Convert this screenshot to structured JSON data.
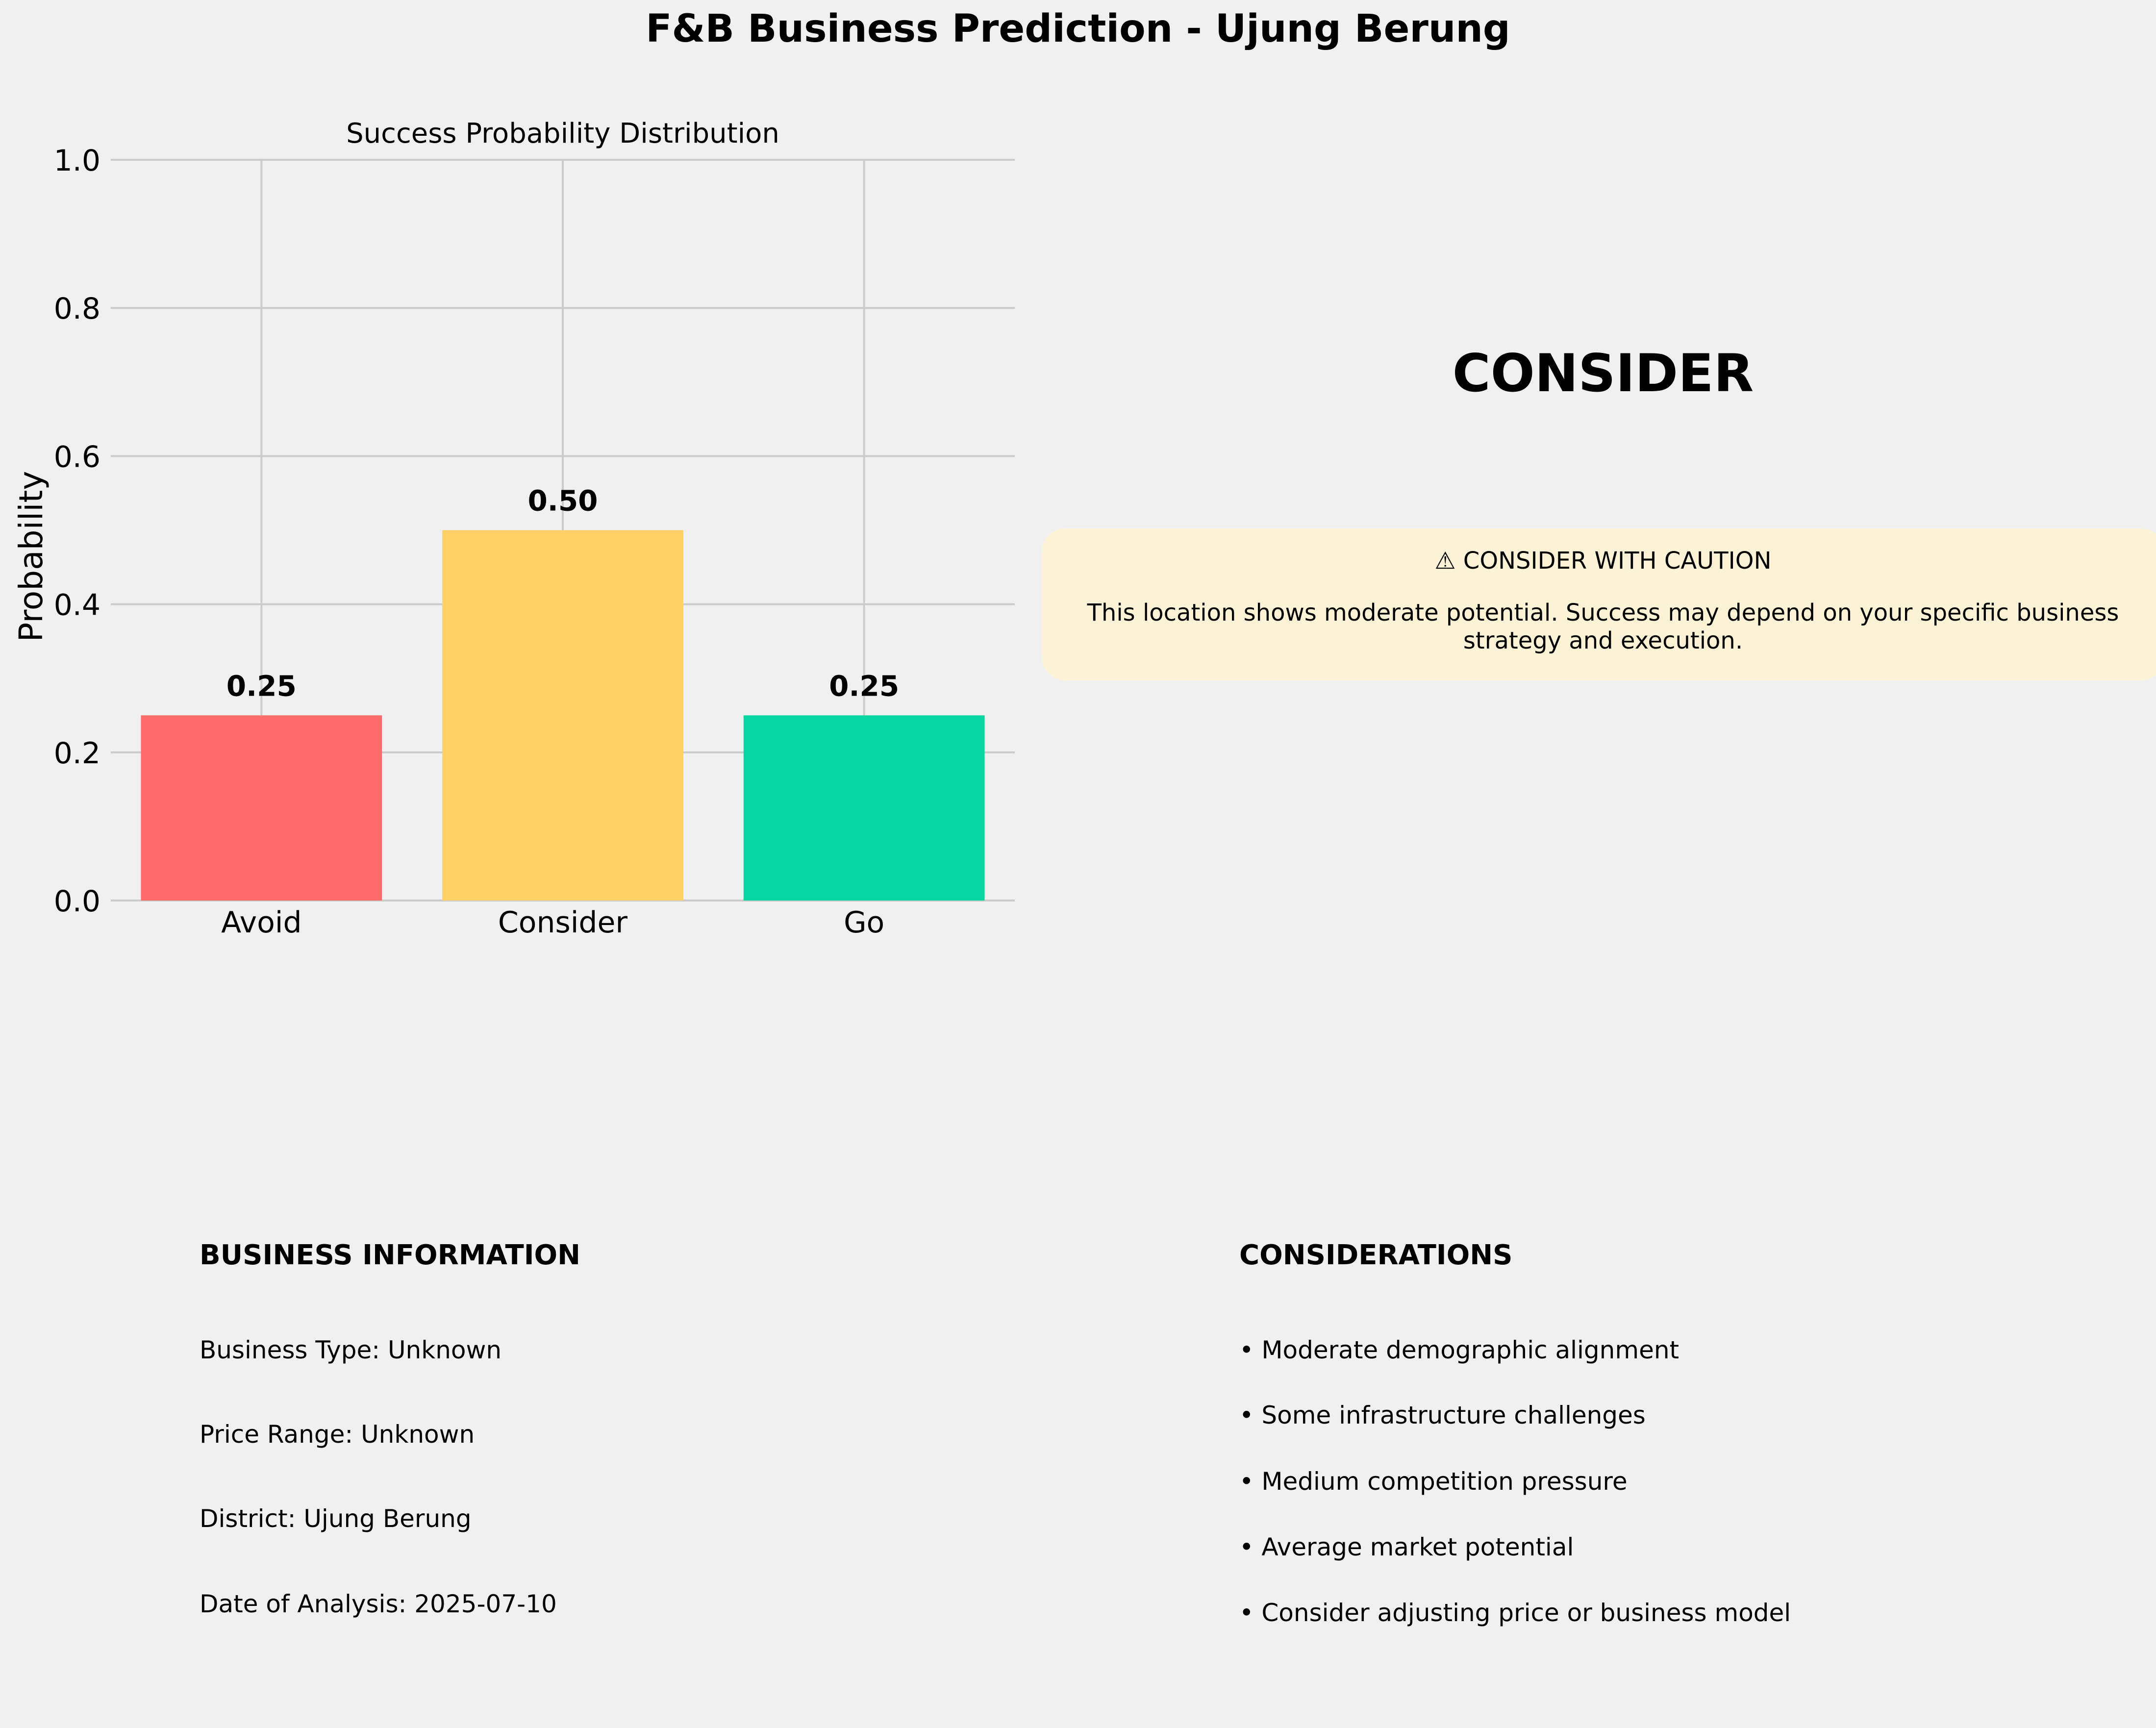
{
  "title": "F&B Business Prediction - Ujung Berung",
  "chart_data": {
    "type": "bar",
    "title": "Success Probability Distribution",
    "categories": [
      "Avoid",
      "Consider",
      "Go"
    ],
    "values": [
      0.25,
      0.5,
      0.25
    ],
    "value_labels": [
      "0.25",
      "0.50",
      "0.25"
    ],
    "bar_colors": [
      "#ff6b6b",
      "#ffd166",
      "#06d6a0"
    ],
    "xlabel": "",
    "ylabel": "Probability",
    "ylim": [
      0,
      1.0
    ],
    "yticks": [
      0.0,
      0.2,
      0.4,
      0.6,
      0.8,
      1.0
    ],
    "ytick_labels": [
      "0.0",
      "0.2",
      "0.4",
      "0.6",
      "0.8",
      "1.0"
    ],
    "grid": true
  },
  "verdict": {
    "label": "CONSIDER",
    "box_color": "#fcf3d6",
    "heading": "⚠ CONSIDER WITH CAUTION",
    "message": "This location shows moderate potential. Success may depend on your specific business strategy and execution."
  },
  "business_info": {
    "heading": "BUSINESS INFORMATION",
    "lines": [
      "Business Type: Unknown",
      "Price Range: Unknown",
      "District: Ujung Berung",
      "Date of Analysis: 2025-07-10"
    ]
  },
  "considerations": {
    "heading": "CONSIDERATIONS",
    "items": [
      "• Moderate demographic alignment",
      "• Some infrastructure challenges",
      "• Medium competition pressure",
      "• Average market potential",
      "• Consider adjusting price or business model"
    ]
  }
}
